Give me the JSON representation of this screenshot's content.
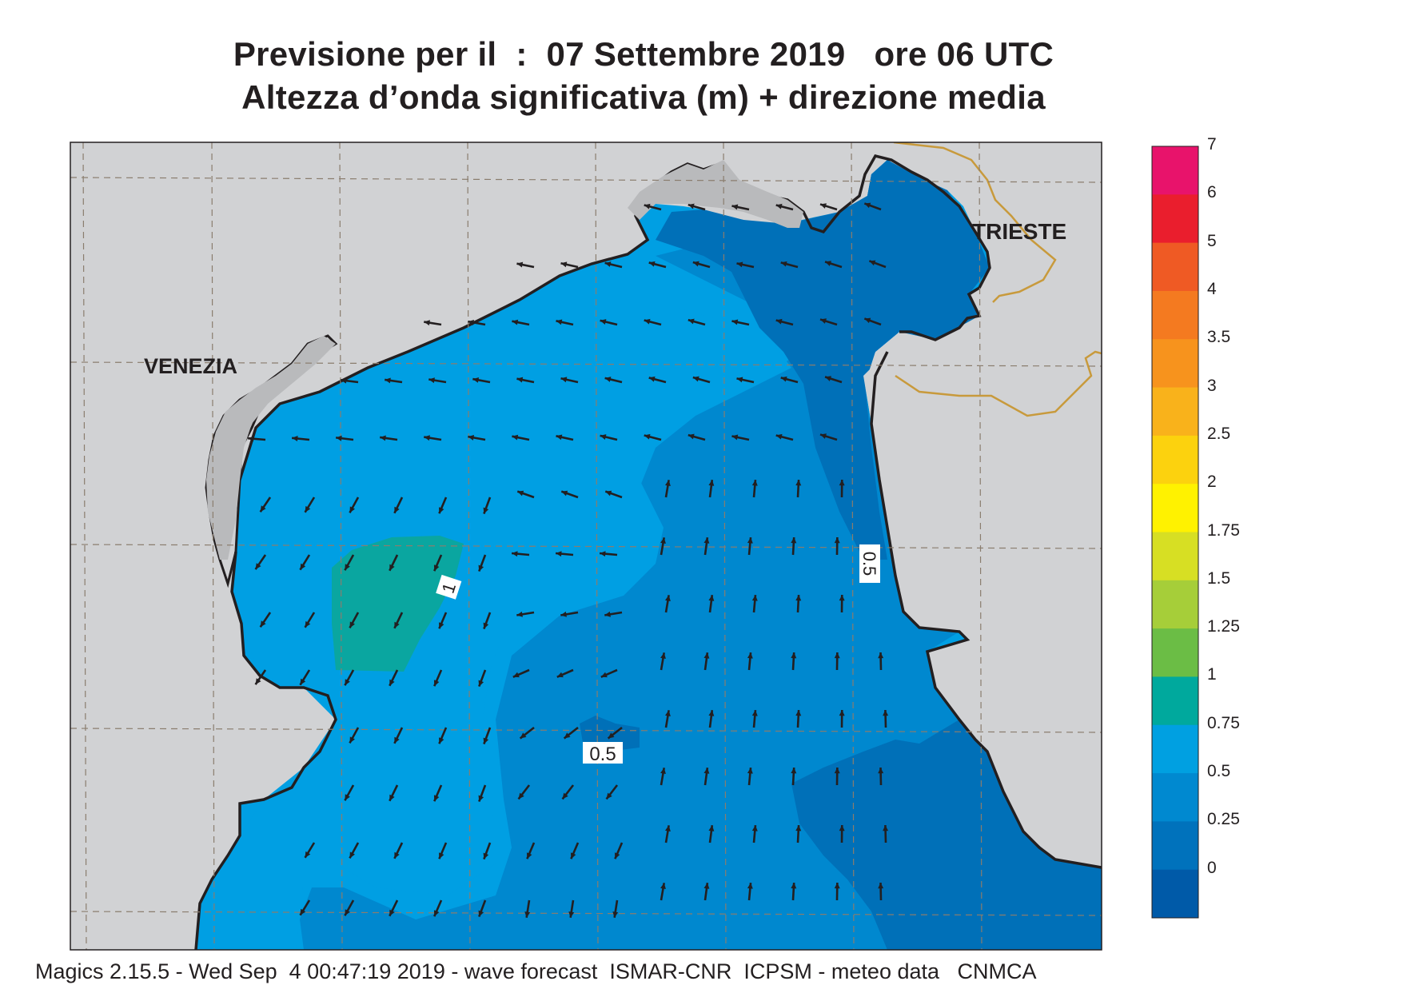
{
  "title_line1": "Previsione per il  :  07 Settembre 2019   ore 06 UTC",
  "title_line2": "Altezza d’onda significativa (m) + direzione media",
  "footer": "Magics 2.15.5 - Wed Sep  4 00:47:19 2019 - wave forecast  ISMAR-CNR  ICPSM - meteo data   CNMCA",
  "places": {
    "venezia": "VENEZIA",
    "trieste": "TRIESTE"
  },
  "contour_labels": {
    "one": "1",
    "half_east": "0.5",
    "half_center": "0.5"
  },
  "colorbar": {
    "labels": [
      "7",
      "6",
      "5",
      "4",
      "3.5",
      "3",
      "2.5",
      "2",
      "1.75",
      "1.5",
      "1.25",
      "1",
      "0.75",
      "0.5",
      "0.25",
      "0"
    ],
    "colors": [
      "#e8136b",
      "#ea1e2d",
      "#ef5a24",
      "#f47a20",
      "#f7931d",
      "#f9b21b",
      "#fcd20e",
      "#fff200",
      "#d7df23",
      "#a6ce39",
      "#6bbd45",
      "#00a99d",
      "#00a0e1",
      "#0089d0",
      "#0072bc",
      "#005aa8"
    ]
  },
  "colors": {
    "land": "#d1d2d4",
    "sea_1_125": "#0aa6a0",
    "sea_075_1": "#009fe3",
    "sea_05_075": "#0088cf",
    "sea_025_05": "#0070b8",
    "border": "#c89a3c",
    "arrow": "#231f20"
  }
}
